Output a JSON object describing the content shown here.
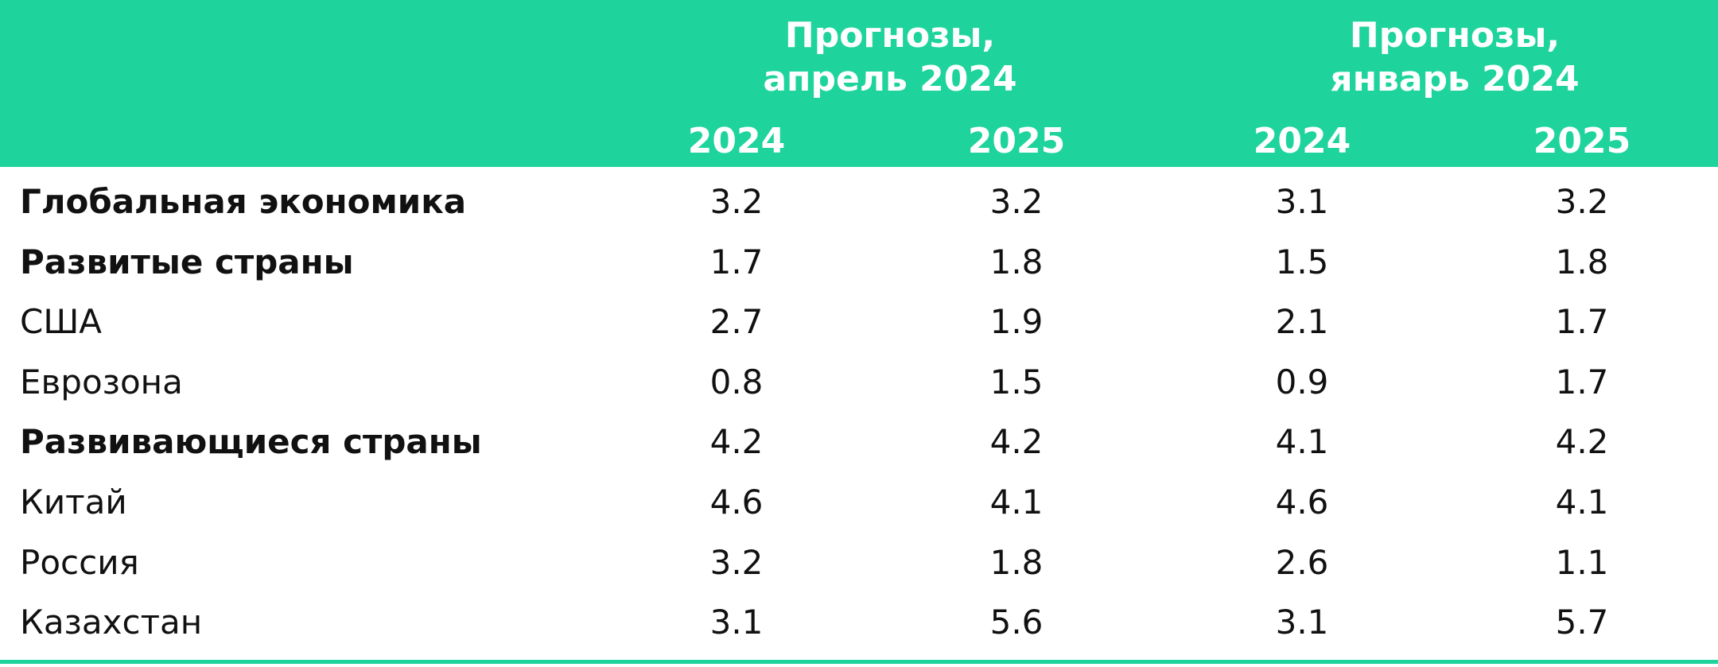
{
  "header": {
    "groups": [
      {
        "lines": [
          "Прогнозы,",
          "апрель 2024"
        ],
        "years": [
          "2024",
          "2025"
        ]
      },
      {
        "lines": [
          "Прогнозы,",
          "январь 2024"
        ],
        "years": [
          "2024",
          "2025"
        ]
      }
    ]
  },
  "table": {
    "rows": [
      {
        "label": "Глобальная экономика",
        "bold": true,
        "values": [
          3.2,
          3.2,
          3.1,
          3.2
        ]
      },
      {
        "label": "Развитые страны",
        "bold": true,
        "values": [
          1.7,
          1.8,
          1.5,
          1.8
        ]
      },
      {
        "label": "США",
        "bold": false,
        "values": [
          2.7,
          1.9,
          2.1,
          1.7
        ]
      },
      {
        "label": "Еврозона",
        "bold": false,
        "values": [
          0.8,
          1.5,
          0.9,
          1.7
        ]
      },
      {
        "label": "Развивающиеся страны",
        "bold": true,
        "values": [
          4.2,
          4.2,
          4.1,
          4.2
        ]
      },
      {
        "label": "Китай",
        "bold": false,
        "values": [
          4.6,
          4.1,
          4.6,
          4.1
        ]
      },
      {
        "label": "Россия",
        "bold": false,
        "values": [
          3.2,
          1.8,
          2.6,
          1.1
        ]
      },
      {
        "label": "Казахстан",
        "bold": false,
        "values": [
          3.1,
          5.6,
          3.1,
          5.7
        ]
      }
    ]
  }
}
